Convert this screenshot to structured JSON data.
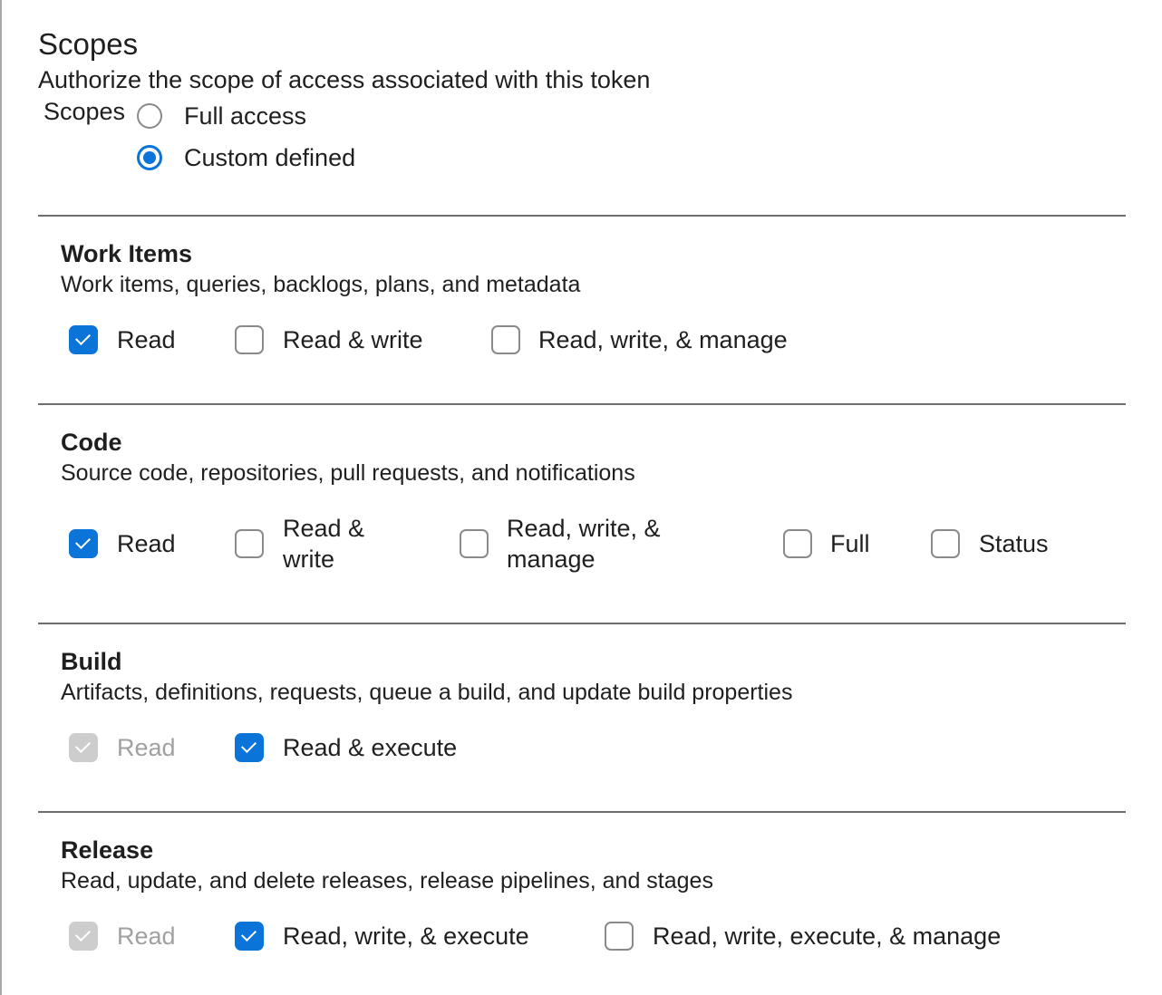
{
  "header": {
    "title": "Scopes",
    "subtitle": "Authorize the scope of access associated with this token"
  },
  "scope_type": {
    "label": "Scopes",
    "options": [
      {
        "label": "Full access",
        "selected": false
      },
      {
        "label": "Custom defined",
        "selected": true
      }
    ]
  },
  "accent_color": "#0a74d8",
  "sections": [
    {
      "title": "Work Items",
      "description": "Work items, queries, backlogs, plans, and metadata",
      "options": [
        {
          "label": "Read",
          "checked": true
        },
        {
          "label": "Read & write",
          "checked": false
        },
        {
          "label": "Read, write, & manage",
          "checked": false
        }
      ]
    },
    {
      "title": "Code",
      "description": "Source code, repositories, pull requests, and notifications",
      "options": [
        {
          "label": "Read",
          "checked": true
        },
        {
          "label_line1": "Read &",
          "label_line2": "write",
          "checked": false
        },
        {
          "label_line1": "Read, write, &",
          "label_line2": "manage",
          "checked": false
        },
        {
          "label": "Full",
          "checked": false
        },
        {
          "label": "Status",
          "checked": false
        }
      ]
    },
    {
      "title": "Build",
      "description": "Artifacts, definitions, requests, queue a build, and update build properties",
      "options": [
        {
          "label": "Read",
          "checked": true,
          "disabled": true
        },
        {
          "label": "Read & execute",
          "checked": true
        }
      ]
    },
    {
      "title": "Release",
      "description": "Read, update, and delete releases, release pipelines, and stages",
      "options": [
        {
          "label": "Read",
          "checked": true,
          "disabled": true
        },
        {
          "label": "Read, write, & execute",
          "checked": true
        },
        {
          "label": "Read, write, execute, & manage",
          "checked": false
        }
      ]
    }
  ]
}
